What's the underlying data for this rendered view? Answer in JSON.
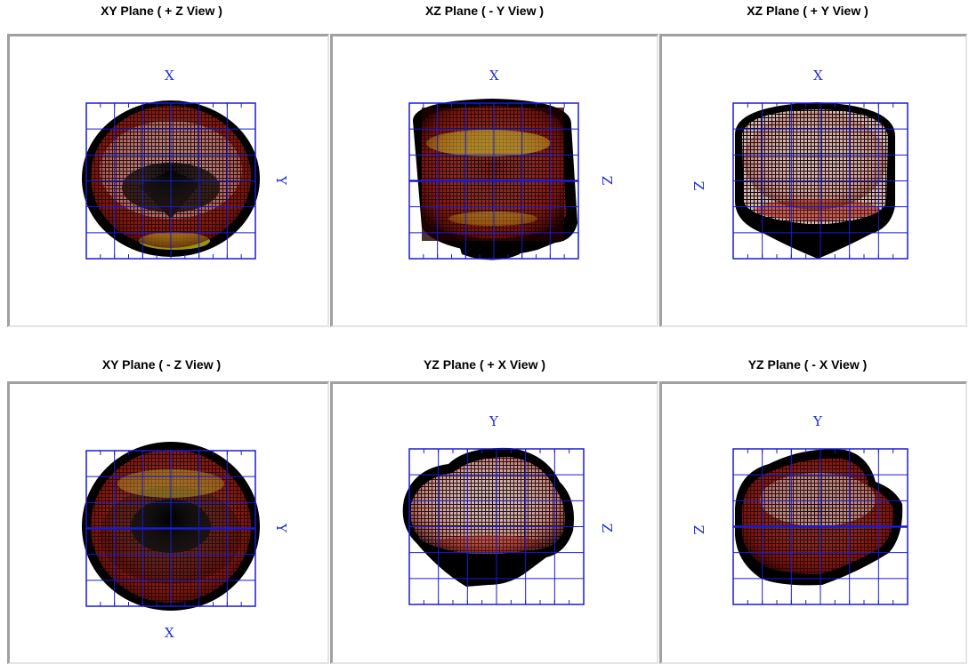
{
  "panels": [
    {
      "title": "XY Plane ( + Z View )",
      "top_label": "X",
      "side_label": "Y",
      "side": "right",
      "bottom_label": "",
      "view": "top"
    },
    {
      "title": "XZ Plane ( - Y View )",
      "top_label": "X",
      "side_label": "Z",
      "side": "right",
      "bottom_label": "",
      "view": "front"
    },
    {
      "title": "XZ Plane ( + Y View )",
      "top_label": "X",
      "side_label": "Z",
      "side": "left",
      "bottom_label": "",
      "view": "back"
    },
    {
      "title": "XY Plane ( - Z View )",
      "top_label": "",
      "side_label": "Y",
      "side": "right",
      "bottom_label": "X",
      "view": "bottom"
    },
    {
      "title": "YZ Plane ( + X View )",
      "top_label": "Y",
      "side_label": "Z",
      "side": "right",
      "bottom_label": "",
      "view": "side"
    },
    {
      "title": "YZ Plane ( - X View )",
      "top_label": "Y",
      "side_label": "Z",
      "side": "left",
      "bottom_label": "",
      "view": "side2"
    }
  ],
  "colors": {
    "grid": "#1a1ad6",
    "shadow": "#000000",
    "mesh_light": "#e8c8c4",
    "mesh_red": "#a02018",
    "mesh_yellow": "#d8d020",
    "axis_label": "#1e2fd8"
  }
}
